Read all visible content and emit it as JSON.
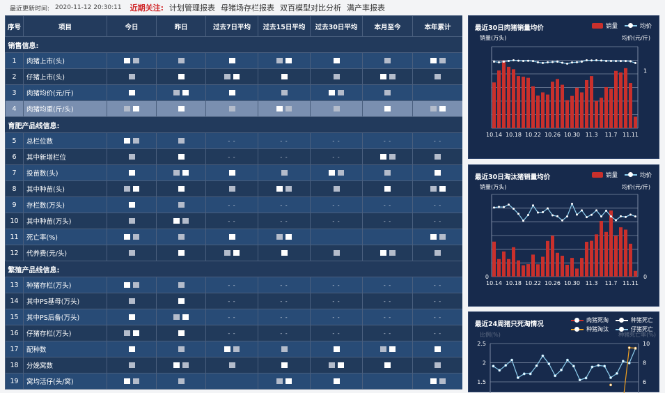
{
  "topbar": {
    "update_label": "最近更新时间:",
    "update_time": "2020-11-12 20:30:11",
    "focus_label": "近期关注:",
    "links": [
      "计划管理报表",
      "母猪场存栏报表",
      "双百模型对比分析",
      "满产率报表"
    ]
  },
  "table": {
    "headers": [
      "序号",
      "项目",
      "今日",
      "昨日",
      "过去7日平均",
      "过去15日平均",
      "过去30日平均",
      "本月至今",
      "本年累计"
    ],
    "sections": [
      {
        "title": "销售信息:",
        "rows": [
          {
            "no": "1",
            "item": "肉猪上市(头)",
            "cells": [
              null,
              null,
              null,
              null,
              null,
              null,
              null
            ]
          },
          {
            "no": "2",
            "item": "仔猪上市(头)",
            "cells": [
              null,
              null,
              null,
              null,
              null,
              null,
              null
            ]
          },
          {
            "no": "3",
            "item": "肉猪均价(元/斤)",
            "cells": [
              null,
              null,
              null,
              null,
              null,
              null,
              ""
            ]
          },
          {
            "no": "4",
            "item": "肉猪均重(斤/头)",
            "cells": [
              null,
              null,
              null,
              null,
              null,
              null,
              null
            ],
            "highlight": true
          }
        ]
      },
      {
        "title": "育肥产品线信息:",
        "rows": [
          {
            "no": "5",
            "item": "总栏位数",
            "cells": [
              null,
              null,
              "- -",
              "- -",
              "- -",
              "- -",
              "- -"
            ]
          },
          {
            "no": "6",
            "item": "其中新增栏位",
            "cells": [
              null,
              null,
              "- -",
              "- -",
              "- -",
              null,
              null
            ]
          },
          {
            "no": "7",
            "item": "投苗数(头)",
            "cells": [
              null,
              null,
              null,
              null,
              null,
              null,
              null
            ]
          },
          {
            "no": "8",
            "item": "其中种苗(头)",
            "cells": [
              null,
              null,
              null,
              null,
              null,
              null,
              null
            ]
          },
          {
            "no": "9",
            "item": "存栏数(万头)",
            "cells": [
              null,
              null,
              "- -",
              "- -",
              "- -",
              "- -",
              "- -"
            ]
          },
          {
            "no": "10",
            "item": "其中种苗(万头)",
            "cells": [
              null,
              null,
              "- -",
              "- -",
              "- -",
              "- -",
              "- -"
            ]
          },
          {
            "no": "11",
            "item": "死亡率(%)",
            "cells": [
              null,
              null,
              null,
              null,
              "",
              "",
              null
            ]
          },
          {
            "no": "12",
            "item": "代养费(元/头)",
            "cells": [
              null,
              null,
              null,
              null,
              null,
              null,
              null
            ]
          }
        ]
      },
      {
        "title": "繁殖产品线信息:",
        "rows": [
          {
            "no": "13",
            "item": "种猪存栏(万头)",
            "cells": [
              null,
              null,
              "- -",
              "- -",
              "- -",
              "- -",
              "- -"
            ]
          },
          {
            "no": "14",
            "item": "其中PS基母(万头)",
            "cells": [
              null,
              null,
              "- -",
              "- -",
              "- -",
              "- -",
              "- -"
            ]
          },
          {
            "no": "15",
            "item": "其中PS后备(万头)",
            "cells": [
              null,
              null,
              "- -",
              "- -",
              "- -",
              "- -",
              "- -"
            ]
          },
          {
            "no": "16",
            "item": "仔猪存栏(万头)",
            "cells": [
              null,
              null,
              "- -",
              "- -",
              "- -",
              "- -",
              "- -"
            ]
          },
          {
            "no": "17",
            "item": "配种数",
            "cells": [
              null,
              null,
              null,
              null,
              null,
              null,
              null
            ]
          },
          {
            "no": "18",
            "item": "分娩窝数",
            "cells": [
              null,
              null,
              null,
              null,
              null,
              null,
              null
            ]
          },
          {
            "no": "19",
            "item": "窝均活仔(头/窝)",
            "cells": [
              null,
              null,
              "",
              null,
              null,
              "",
              null
            ]
          }
        ]
      }
    ]
  },
  "chart_data": [
    {
      "type": "bar+line",
      "title": "最近30日肉猪销量均价",
      "ylabel": "销量(万头)",
      "y2label": "均价(元/斤)",
      "legend": [
        "销量",
        "均价"
      ],
      "legend_position": "top-right",
      "colors": {
        "bar": "#c9302c",
        "line": "#8fd0f0"
      },
      "xticks": [
        "10.14",
        "10.18",
        "10.22",
        "10.26",
        "10.30",
        "11.3",
        "11.7",
        "11.11"
      ],
      "y2ticks": [
        "1"
      ],
      "bars": [
        3.37,
        4.25,
        4.98,
        4.52,
        4.34,
        3.84,
        3.79,
        3.71,
        3.08,
        2.4,
        2.64,
        2.48,
        3.42,
        3.62,
        3.2,
        2.06,
        2.38,
        2.98,
        2.64,
        3.54,
        3.84,
        2.01,
        2.24,
        3.03,
        2.91,
        4.22,
        4.1,
        4.42,
        3.33,
        0.85
      ],
      "line": [
        4.9,
        4.85,
        4.9,
        4.95,
        5.0,
        4.97,
        4.95,
        4.96,
        4.94,
        4.85,
        4.8,
        4.85,
        4.87,
        4.9,
        4.82,
        4.75,
        4.84,
        4.86,
        4.9,
        5.0,
        4.99,
        5.0,
        4.98,
        4.95,
        4.95,
        4.94,
        4.94,
        4.94,
        4.92,
        4.8
      ],
      "ylim": [
        0,
        6
      ],
      "grid": true
    },
    {
      "type": "bar+line",
      "title": "最近30日淘汰猪销量均价",
      "ylabel": "销量(万头)",
      "y2label": "均价(元/斤)",
      "legend": [
        "销量",
        "均价"
      ],
      "legend_position": "top-right",
      "colors": {
        "bar": "#c9302c",
        "line": "#8fd0f0"
      },
      "xticks": [
        "10.14",
        "10.18",
        "10.22",
        "10.26",
        "10.30",
        "11.3",
        "11.7",
        "11.11"
      ],
      "yticks": [
        "0"
      ],
      "y2ticks": [
        "0"
      ],
      "bars": [
        2.13,
        1.07,
        1.53,
        1.07,
        1.79,
        0.99,
        0.69,
        0.76,
        1.34,
        0.75,
        1.21,
        2.17,
        2.49,
        1.45,
        1.27,
        0.72,
        1.14,
        0.49,
        1.14,
        2.12,
        2.18,
        2.57,
        3.39,
        2.72,
        4.02,
        2.49,
        3.0,
        2.86,
        2.0,
        0.35
      ],
      "line": [
        4.2,
        4.24,
        4.23,
        4.38,
        4.13,
        3.82,
        3.4,
        3.75,
        4.33,
        3.9,
        3.92,
        4.15,
        3.73,
        3.67,
        3.42,
        3.66,
        4.43,
        3.77,
        4.03,
        3.62,
        3.76,
        4.03,
        3.66,
        4.01,
        3.66,
        3.43,
        3.67,
        3.63,
        3.77,
        3.66
      ],
      "ylim": [
        0,
        5
      ],
      "grid": true
    },
    {
      "type": "line",
      "title": "最近24周猪只死淘情况",
      "ylabel": "比例(%)",
      "y2label": "种猪死亡率(%)",
      "legend": [
        "肉猪死淘",
        "种猪死亡",
        "种猪淘汰",
        "仔猪死亡"
      ],
      "legend_position": "top-right",
      "colors": {
        "肉猪死淘": "#c9302c",
        "种猪死亡": "#ffffff",
        "种猪淘汰": "#f0a020",
        "仔猪死亡": "#8fd0f0"
      },
      "yticks": [
        "2.5",
        "2",
        "1.5"
      ],
      "y2ticks": [
        "10",
        "8",
        "6"
      ],
      "ylim": [
        1.5,
        2.5
      ],
      "y2lim": [
        6,
        10
      ],
      "series": [
        {
          "name": "仔猪死亡",
          "values": [
            1.91,
            1.8,
            1.93,
            2.07,
            1.61,
            1.71,
            1.71,
            1.92,
            2.18,
            1.97,
            1.66,
            1.81,
            2.07,
            1.91,
            1.55,
            1.6,
            1.89,
            1.93,
            1.91,
            1.61,
            1.72,
            2.04,
            1.99,
            2.37
          ]
        },
        {
          "name": "种猪淘汰",
          "values": [
            null,
            null,
            null,
            null,
            null,
            null,
            null,
            null,
            null,
            null,
            null,
            null,
            null,
            null,
            null,
            null,
            null,
            null,
            null,
            1.42,
            null,
            1.0,
            2.39,
            2.38
          ]
        }
      ],
      "grid": true
    }
  ]
}
